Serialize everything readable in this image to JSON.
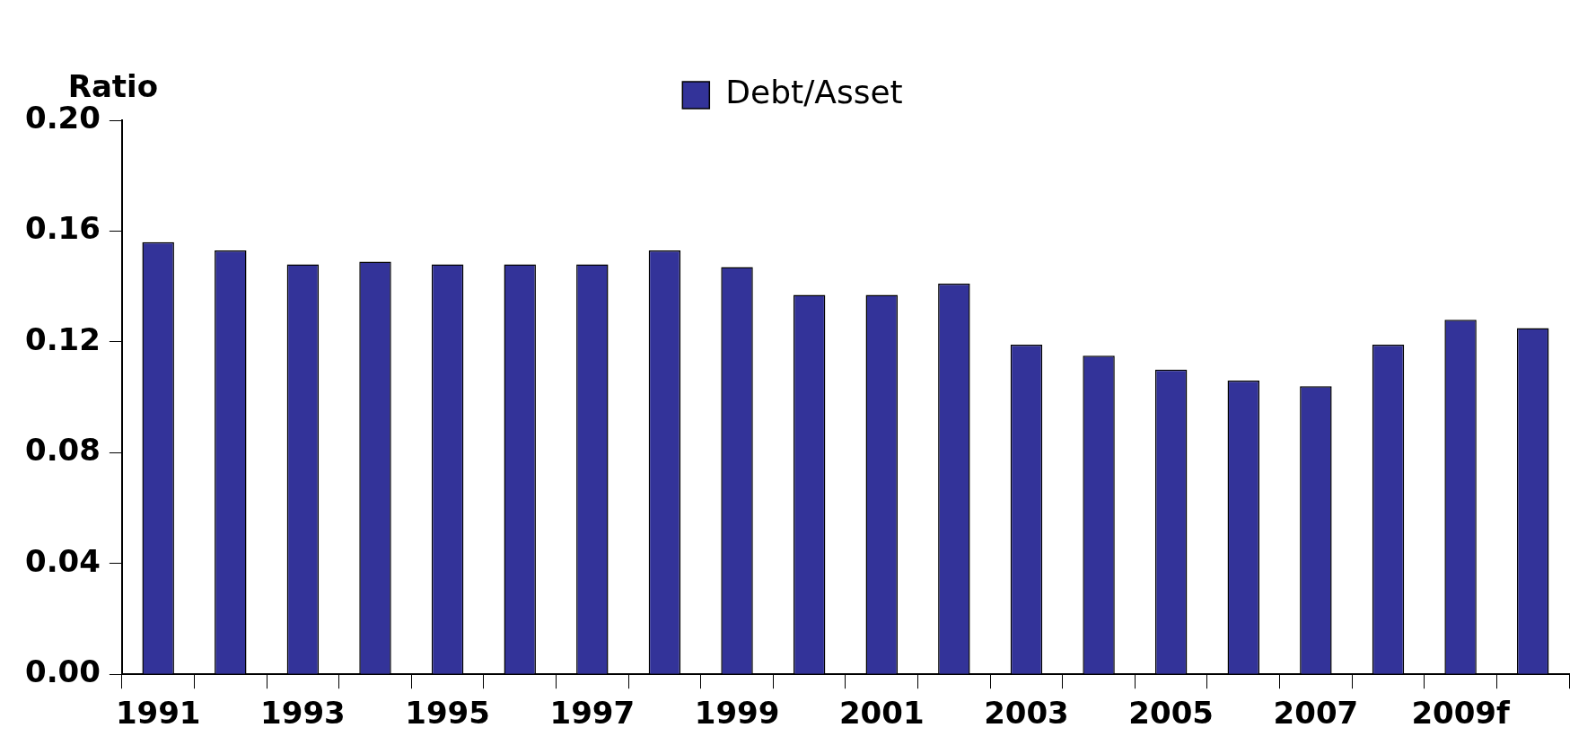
{
  "chart_data": {
    "type": "bar",
    "ylabel": "Ratio",
    "categories": [
      "1991",
      null,
      "1993",
      null,
      "1995",
      null,
      "1997",
      null,
      "1999",
      null,
      "2001",
      null,
      "2003",
      null,
      "2005",
      null,
      "2007",
      null,
      "2009f",
      null
    ],
    "series": [
      {
        "name": "Debt/Asset",
        "color": "#333399",
        "values": [
          0.156,
          0.153,
          0.148,
          0.149,
          0.148,
          0.148,
          0.148,
          0.153,
          0.147,
          0.137,
          0.137,
          0.141,
          0.119,
          0.115,
          0.11,
          0.106,
          0.104,
          0.119,
          0.128,
          0.125
        ]
      }
    ],
    "ylim": [
      0,
      0.2
    ],
    "yticks": [
      {
        "value": 0,
        "label": "0.00"
      },
      {
        "value": 0.04,
        "label": "0.04"
      },
      {
        "value": 0.08,
        "label": "0.08"
      },
      {
        "value": 0.12,
        "label": "0.12"
      },
      {
        "value": 0.16,
        "label": "0.16"
      },
      {
        "value": 0.2,
        "label": "0.20"
      }
    ],
    "grid": false,
    "legend": "top"
  }
}
